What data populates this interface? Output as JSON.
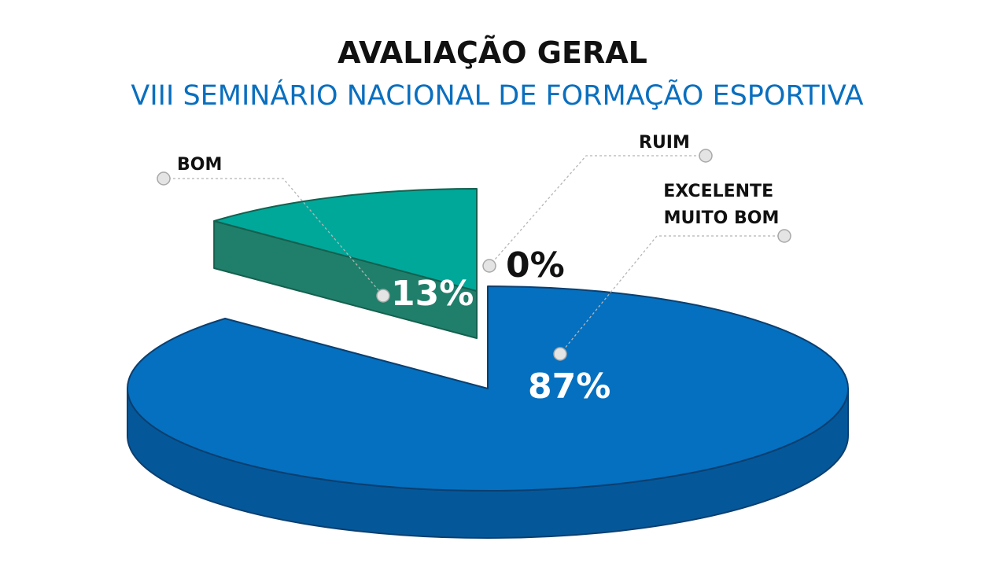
{
  "chart_data": {
    "type": "pie",
    "title": "AVALIAÇÃO GERAL",
    "subtitle": "VIII SEMINÁRIO NACIONAL DE FORMAÇÃO ESPORTIVA",
    "slices": [
      {
        "label": "EXCELENTE\nMUITO BOM",
        "value": 87,
        "value_label": "87%",
        "color": "#0570bf",
        "side_color": "#04589a"
      },
      {
        "label": "BOM",
        "value": 13,
        "value_label": "13%",
        "color": "#00a89a",
        "side_color": "#1f7f6a"
      },
      {
        "label": "RUIM",
        "value": 0,
        "value_label": "0%",
        "color": "#cccccc",
        "side_color": "#aaaaaa"
      }
    ],
    "legend": "callouts"
  }
}
